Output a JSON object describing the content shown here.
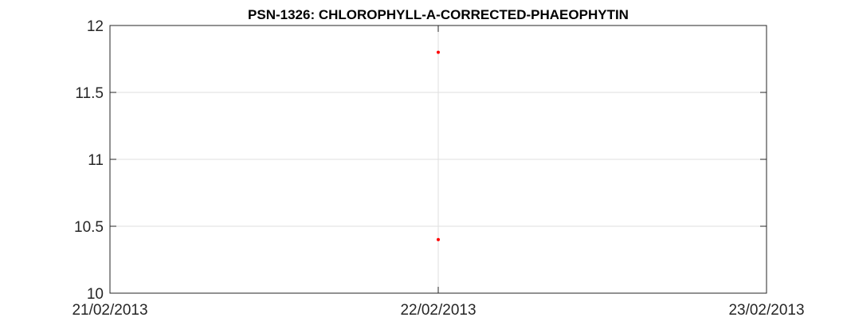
{
  "chart_data": {
    "type": "scatter",
    "title": "PSN-1326: CHLOROPHYLL-A-CORRECTED-PHAEOPHYTIN",
    "xlabel": "",
    "ylabel": "",
    "x_ticks": [
      "21/02/2013",
      "22/02/2013",
      "23/02/2013"
    ],
    "xlim": [
      "21/02/2013",
      "23/02/2013"
    ],
    "y_ticks": [
      "10",
      "10.5",
      "11",
      "11.5",
      "12"
    ],
    "ylim": [
      10,
      12
    ],
    "grid": true,
    "series": [
      {
        "color": "#ff0000",
        "points": [
          {
            "x": "22/02/2013",
            "y": 11.8
          },
          {
            "x": "22/02/2013",
            "y": 10.4
          }
        ]
      }
    ]
  }
}
